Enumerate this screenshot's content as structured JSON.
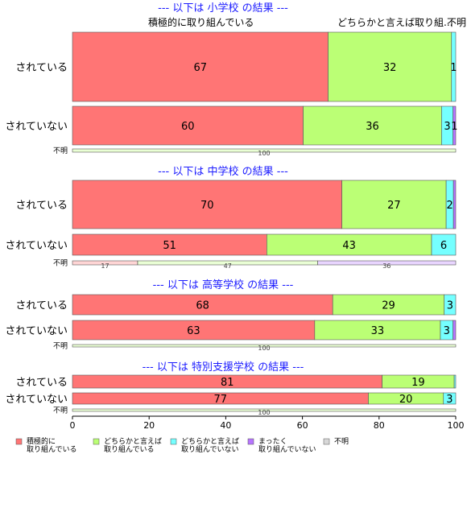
{
  "chart_data": {
    "type": "bar",
    "orientation": "horizontal",
    "stacked": true,
    "xlim": [
      0,
      100
    ],
    "x_ticks": [
      "0",
      "20",
      "40",
      "60",
      "80",
      "100"
    ],
    "colors": {
      "positive": "#ff7575",
      "somewhat_positive": "#bbff75",
      "somewhat_negative": "#75ffff",
      "negative": "#b775ff",
      "unknown": "#d8d8d8",
      "group_title": "#1c1cff"
    },
    "top_labels": [
      "積極的に取り組んでいる",
      "どちらかと言えば取り組...",
      "不明"
    ],
    "groups": [
      {
        "title": "--- 以下は 小学校 の結果 ---",
        "rows": [
          {
            "label": "されている",
            "small": false,
            "values": [
              66.7,
              32.2,
              1.1,
              0,
              0
            ],
            "labels": [
              "67",
              "32",
              "1",
              "",
              ""
            ]
          },
          {
            "label": "されていない",
            "small": false,
            "values": [
              60.2,
              36.1,
              3.0,
              0.7,
              0
            ],
            "labels": [
              "60",
              "36",
              "3",
              "1",
              ""
            ]
          },
          {
            "label": "不明",
            "small": true,
            "values": [
              0,
              100,
              0,
              0,
              0
            ],
            "labels": [
              "",
              "100",
              "",
              "",
              ""
            ]
          }
        ]
      },
      {
        "title": "--- 以下は 中学校 の結果 ---",
        "rows": [
          {
            "label": "されている",
            "small": false,
            "values": [
              70.3,
              27.2,
              1.9,
              0.6,
              0
            ],
            "labels": [
              "70",
              "27",
              "2",
              "",
              ""
            ]
          },
          {
            "label": "されていない",
            "small": false,
            "values": [
              50.7,
              43.0,
              6.3,
              0,
              0
            ],
            "labels": [
              "51",
              "43",
              "6",
              "",
              ""
            ]
          },
          {
            "label": "不明",
            "small": true,
            "values": [
              17,
              47,
              0,
              36,
              0
            ],
            "labels": [
              "17",
              "47",
              "",
              "36",
              ""
            ]
          }
        ]
      },
      {
        "title": "--- 以下は 高等学校 の結果 ---",
        "rows": [
          {
            "label": "されている",
            "small": false,
            "values": [
              67.9,
              29.1,
              3.0,
              0,
              0
            ],
            "labels": [
              "68",
              "29",
              "3",
              "",
              ""
            ]
          },
          {
            "label": "されていない",
            "small": false,
            "values": [
              63.2,
              32.8,
              3.3,
              0.7,
              0
            ],
            "labels": [
              "63",
              "33",
              "3",
              "",
              ""
            ]
          },
          {
            "label": "不明",
            "small": true,
            "values": [
              0,
              100,
              0,
              0,
              0
            ],
            "labels": [
              "",
              "100",
              "",
              "",
              ""
            ]
          }
        ]
      },
      {
        "title": "--- 以下は 特別支援学校 の結果 ---",
        "rows": [
          {
            "label": "されている",
            "small": false,
            "values": [
              80.8,
              18.8,
              0.4,
              0,
              0
            ],
            "labels": [
              "81",
              "19",
              "",
              "",
              ""
            ]
          },
          {
            "label": "されていない",
            "small": false,
            "values": [
              77.2,
              19.6,
              3.2,
              0,
              0
            ],
            "labels": [
              "77",
              "20",
              "3",
              "",
              ""
            ]
          },
          {
            "label": "不明",
            "small": true,
            "values": [
              0,
              100,
              0,
              0,
              0
            ],
            "labels": [
              "",
              "100",
              "",
              "",
              ""
            ]
          }
        ]
      }
    ],
    "legend": [
      {
        "key": "positive",
        "line1": "積極的に",
        "line2": "取り組んでいる"
      },
      {
        "key": "somewhat_positive",
        "line1": "どちらかと言えば",
        "line2": "取り組んでいる"
      },
      {
        "key": "somewhat_negative",
        "line1": "どちらかと言えば",
        "line2": "取り組んでいない"
      },
      {
        "key": "negative",
        "line1": "まったく",
        "line2": "取り組んでいない"
      },
      {
        "key": "unknown",
        "line1": "不明",
        "line2": ""
      }
    ]
  }
}
